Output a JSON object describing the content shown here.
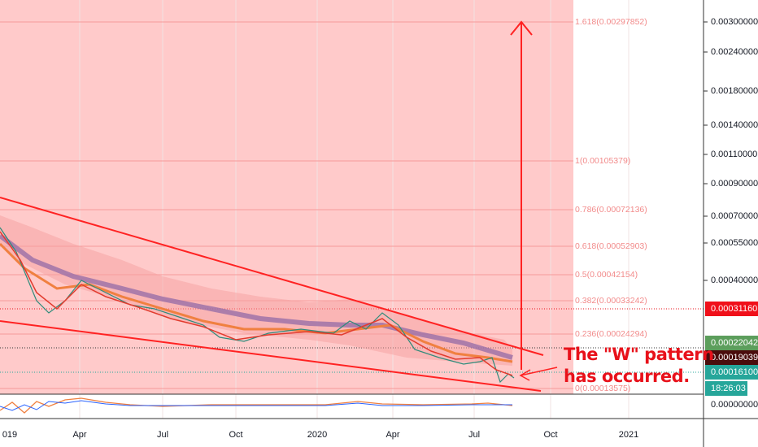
{
  "price_axis": [
    "0.00300000",
    "0.00240000",
    "0.00180000",
    "0.00140000",
    "0.00110000",
    "0.00090000",
    "0.00070000",
    "0.00055000",
    "0.00040000"
  ],
  "badges": {
    "last_price": "0.00031160",
    "level_a": "0.00022042",
    "level_b": "0.00019039",
    "current": "0.00016100",
    "countdown": "18:26:03",
    "indicator": "0.00000000"
  },
  "fib_levels": [
    "1.618(0.00297852)",
    "1(0.00105379)",
    "0.786(0.00072136)",
    "0.618(0.00052903)",
    "0.5(0.00042154)",
    "0.382(0.00033242)",
    "0.236(0.00024294)",
    "0(0.00013575)"
  ],
  "time_axis": [
    "019",
    "Apr",
    "Jul",
    "Oct",
    "2020",
    "Apr",
    "Jul",
    "Oct",
    "2021"
  ],
  "annotation": [
    "The \"W\" pattern",
    "has occurred."
  ]
}
